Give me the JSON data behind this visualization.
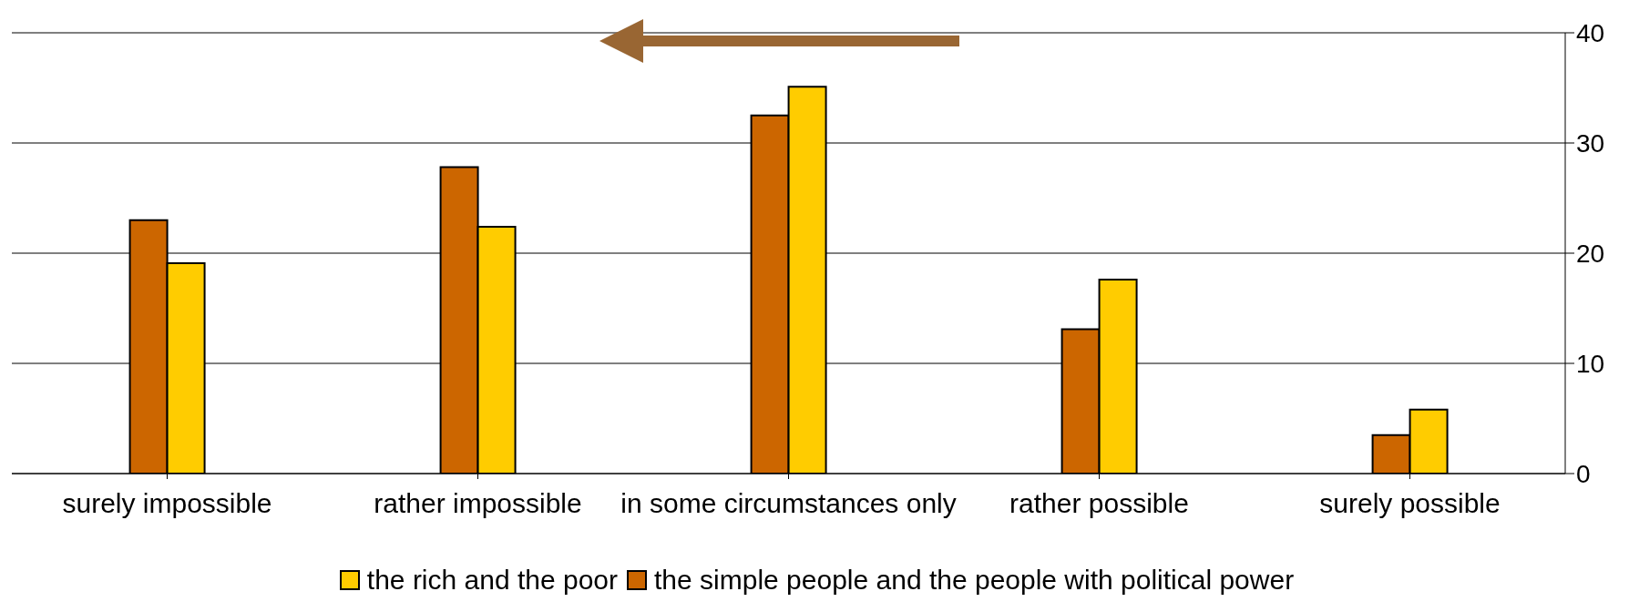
{
  "chart_data": {
    "type": "bar",
    "categories": [
      "surely impossible",
      "rather impossible",
      "in some circumstances only",
      "rather possible",
      "surely possible"
    ],
    "series": [
      {
        "name": "the simple people and the people with political power",
        "color": "#cc6600",
        "values": [
          23,
          27.8,
          32.5,
          13.1,
          3.5
        ]
      },
      {
        "name": "the rich and the poor",
        "color": "#ffcc00",
        "values": [
          19.1,
          22.4,
          35.1,
          17.6,
          5.8
        ]
      }
    ],
    "ylim": [
      0,
      40
    ],
    "yticks": [
      0,
      10,
      20,
      30,
      40
    ],
    "grid": "y",
    "legend": "bottom"
  }
}
